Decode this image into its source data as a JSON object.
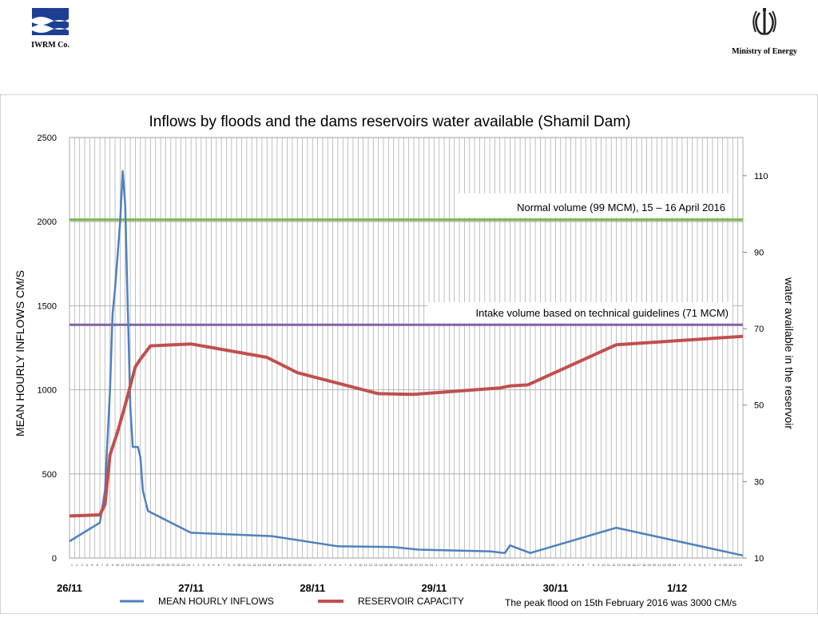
{
  "header": {
    "left_org": "IWRM Co.",
    "right_org": "Ministry of Energy",
    "left_logo_icon": "water-wave-logo-icon",
    "right_logo_icon": "iran-emblem-icon"
  },
  "chart_data": {
    "type": "line",
    "title": "Inflows by floods and the dams reservoirs water available (Shamil Dam)",
    "ylabel": "MEAN HOURLY INFLOWS CM/S",
    "ylabel_right": "water available in the reservoir",
    "ylim": [
      0,
      2500
    ],
    "ylim_right": [
      10,
      120
    ],
    "yticks": [
      0,
      500,
      1000,
      1500,
      2000,
      2500
    ],
    "yticks_right": [
      10,
      30,
      50,
      70,
      90,
      110
    ],
    "xlim": [
      0,
      133
    ],
    "grid": true,
    "day_labels": [
      {
        "label": "26/11",
        "x": 0
      },
      {
        "label": "27/11",
        "x": 24
      },
      {
        "label": "28/11",
        "x": 48
      },
      {
        "label": "29/11",
        "x": 72
      },
      {
        "label": "30/11",
        "x": 96
      },
      {
        "label": "1/12",
        "x": 120
      }
    ],
    "series": [
      {
        "name": "MEAN HOURLY INFLOWS",
        "axis": "left",
        "color": "#4f81bd",
        "points": [
          [
            0,
            100
          ],
          [
            6,
            210
          ],
          [
            7,
            400
          ],
          [
            8,
            1000
          ],
          [
            8.5,
            1450
          ],
          [
            9,
            1600
          ],
          [
            10,
            2000
          ],
          [
            10.5,
            2300
          ],
          [
            11,
            2100
          ],
          [
            12,
            900
          ],
          [
            12.5,
            660
          ],
          [
            13.5,
            660
          ],
          [
            14,
            600
          ],
          [
            14.5,
            400
          ],
          [
            15.5,
            280
          ],
          [
            24,
            150
          ],
          [
            40,
            130
          ],
          [
            53,
            70
          ],
          [
            64,
            65
          ],
          [
            69,
            50
          ],
          [
            83,
            40
          ],
          [
            86,
            30
          ],
          [
            87,
            75
          ],
          [
            91,
            30
          ],
          [
            108,
            180
          ],
          [
            133,
            15
          ]
        ]
      },
      {
        "name": "RESERVOIR CAPACITY",
        "axis": "right",
        "color": "#c0504d",
        "points": [
          [
            0,
            21
          ],
          [
            6,
            21.3
          ],
          [
            7,
            24
          ],
          [
            8,
            37
          ],
          [
            9.5,
            43
          ],
          [
            11,
            50
          ],
          [
            13,
            60
          ],
          [
            14,
            62
          ],
          [
            16,
            65.5
          ],
          [
            24,
            66
          ],
          [
            39,
            62.5
          ],
          [
            45,
            58.5
          ],
          [
            61,
            53
          ],
          [
            68,
            52.8
          ],
          [
            85,
            54.5
          ],
          [
            87,
            55
          ],
          [
            90.5,
            55.3
          ],
          [
            108,
            65.8
          ],
          [
            133,
            68
          ]
        ]
      }
    ],
    "reference_lines": [
      {
        "name": "normal-volume",
        "y_right": 98.5,
        "color": "#77b84a",
        "label": "Normal volume (99 MCM), 15 – 16  April 2016"
      },
      {
        "name": "intake-volume",
        "y_right": 71,
        "color": "#8064a2",
        "label": "Intake volume based on technical guidelines (71 MCM)"
      }
    ],
    "annotation": "The peak flood on 15th February 2016 was 3000 CM/s",
    "legend_position": "bottom"
  }
}
